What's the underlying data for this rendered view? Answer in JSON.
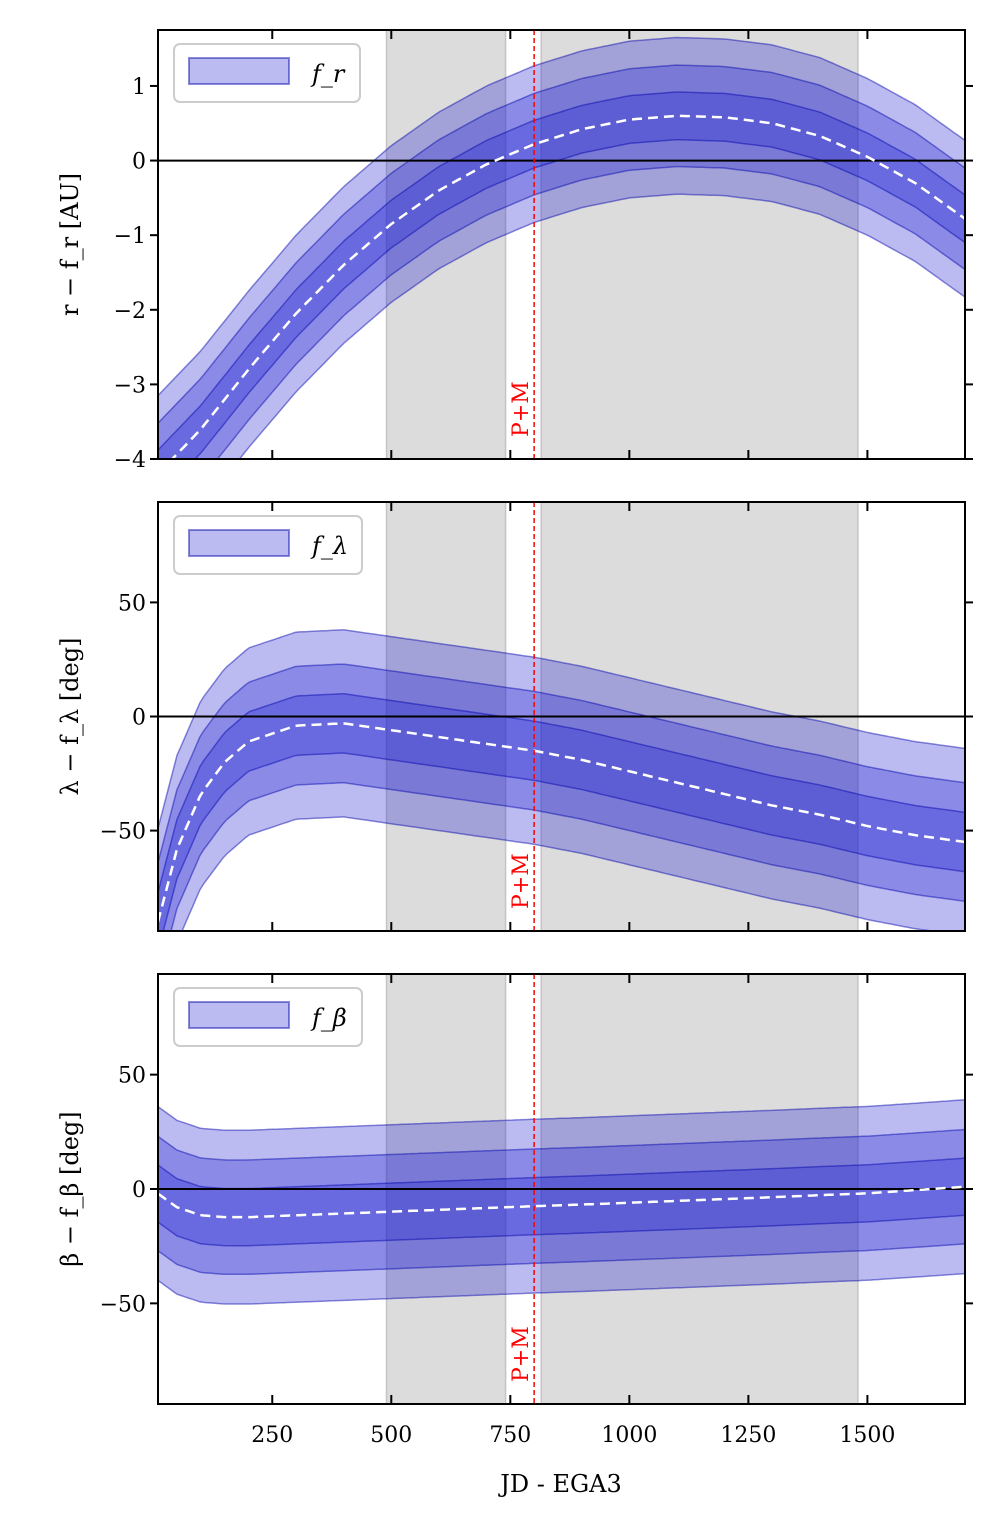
{
  "chart_data": {
    "type": "area",
    "xlabel": "JD - EGA3",
    "xlim": [
      10,
      1705
    ],
    "xticks": [
      250,
      500,
      750,
      1000,
      1250,
      1500
    ],
    "xtick_labels": [
      "250",
      "500",
      "750",
      "1000",
      "1250",
      "1500"
    ],
    "shaded_regions": [
      [
        490,
        740
      ],
      [
        815,
        1480
      ]
    ],
    "event": {
      "x": 800,
      "label": "P+M",
      "color": "#ff0000"
    },
    "colors": {
      "band": "#1d1dcf",
      "band_edge": "#0000aa",
      "median": "#ffffff",
      "shade": "#dcdcdc",
      "zero_line": "#000000"
    },
    "legend_position": "top-left",
    "panels": [
      {
        "id": "r",
        "ylabel": "r − f_r [AU]",
        "legend_label": "f_r",
        "ylim": [
          -4.0,
          1.75
        ],
        "yticks": [
          1,
          0,
          -1,
          -2,
          -3,
          -4
        ],
        "ytick_labels": [
          "1",
          "0",
          "−1",
          "−2",
          "−3",
          "−4"
        ],
        "x": [
          10,
          100,
          200,
          300,
          400,
          500,
          600,
          700,
          800,
          900,
          1000,
          1100,
          1200,
          1300,
          1400,
          1500,
          1600,
          1705
        ],
        "median": [
          -4.2,
          -3.6,
          -2.8,
          -2.05,
          -1.4,
          -0.85,
          -0.4,
          -0.05,
          0.22,
          0.42,
          0.55,
          0.6,
          0.58,
          0.5,
          0.33,
          0.05,
          -0.3,
          -0.78
        ],
        "bands_sigma": [
          0.32,
          0.68,
          1.05
        ]
      },
      {
        "id": "lambda",
        "ylabel": "λ − f_λ [deg]",
        "legend_label": "f_λ",
        "ylim": [
          -94,
          94
        ],
        "yticks": [
          50,
          0,
          -50
        ],
        "ytick_labels": [
          "50",
          "0",
          "−50"
        ],
        "x": [
          10,
          50,
          100,
          150,
          200,
          300,
          400,
          500,
          600,
          700,
          800,
          900,
          1000,
          1100,
          1200,
          1300,
          1400,
          1500,
          1600,
          1705
        ],
        "median": [
          -90,
          -58,
          -34,
          -20,
          -11,
          -4,
          -3,
          -6,
          -9,
          -12,
          -15,
          -19,
          -24,
          -29,
          -34,
          -39,
          -43,
          -48,
          -52,
          -55
        ],
        "bands_sigma": [
          13,
          26,
          41
        ]
      },
      {
        "id": "beta",
        "ylabel": "β − f_β [deg]",
        "legend_label": "f_β",
        "ylim": [
          -94,
          94
        ],
        "yticks": [
          50,
          0,
          -50
        ],
        "ytick_labels": [
          "50",
          "0",
          "−50"
        ],
        "x": [
          10,
          50,
          100,
          150,
          200,
          300,
          400,
          500,
          600,
          700,
          800,
          900,
          1000,
          1100,
          1200,
          1300,
          1400,
          1500,
          1600,
          1705
        ],
        "median": [
          -2,
          -8,
          -11.5,
          -12.3,
          -12.3,
          -11.5,
          -10.7,
          -9.9,
          -9.1,
          -8.3,
          -7.5,
          -6.8,
          -6.0,
          -5.2,
          -4.4,
          -3.6,
          -2.7,
          -1.9,
          -0.5,
          1
        ],
        "bands_sigma": [
          12.5,
          25,
          38
        ]
      }
    ]
  }
}
